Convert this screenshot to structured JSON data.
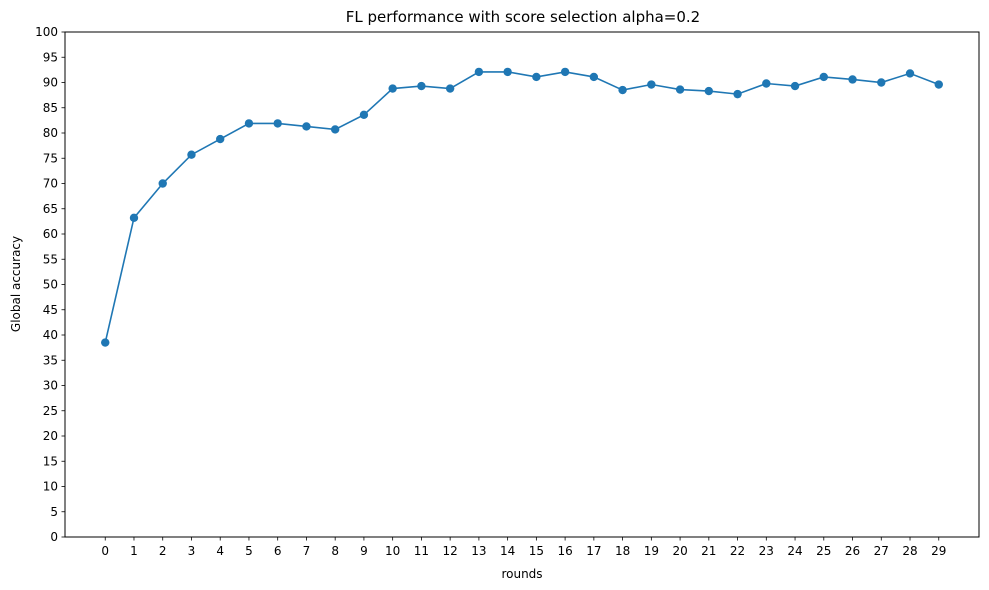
{
  "chart_data": {
    "type": "line",
    "title": "FL performance with score selection alpha=0.2",
    "xlabel": "rounds",
    "ylabel": "Global accuracy",
    "x": [
      0,
      1,
      2,
      3,
      4,
      5,
      6,
      7,
      8,
      9,
      10,
      11,
      12,
      13,
      14,
      15,
      16,
      17,
      18,
      19,
      20,
      21,
      22,
      23,
      24,
      25,
      26,
      27,
      28,
      29
    ],
    "y": [
      38.5,
      63.2,
      70.0,
      75.7,
      78.8,
      81.9,
      81.9,
      81.3,
      80.7,
      83.6,
      88.8,
      89.3,
      88.8,
      92.1,
      92.1,
      91.1,
      92.1,
      91.1,
      88.5,
      89.6,
      88.6,
      88.3,
      87.7,
      89.8,
      89.3,
      91.1,
      90.6,
      90.0,
      91.8,
      89.6
    ],
    "xticks": [
      "0",
      "1",
      "2",
      "3",
      "4",
      "5",
      "6",
      "7",
      "8",
      "9",
      "10",
      "11",
      "12",
      "13",
      "14",
      "15",
      "16",
      "17",
      "18",
      "19",
      "20",
      "21",
      "22",
      "23",
      "24",
      "25",
      "26",
      "27",
      "28",
      "29"
    ],
    "yticks": [
      "0",
      "5",
      "10",
      "15",
      "20",
      "25",
      "30",
      "35",
      "40",
      "45",
      "50",
      "55",
      "60",
      "65",
      "70",
      "75",
      "80",
      "85",
      "90",
      "95",
      "100"
    ],
    "xlim": [
      -1.4,
      30.4
    ],
    "ylim": [
      0,
      100
    ],
    "grid": false,
    "marker": "circle",
    "color": "#1f77b4"
  }
}
